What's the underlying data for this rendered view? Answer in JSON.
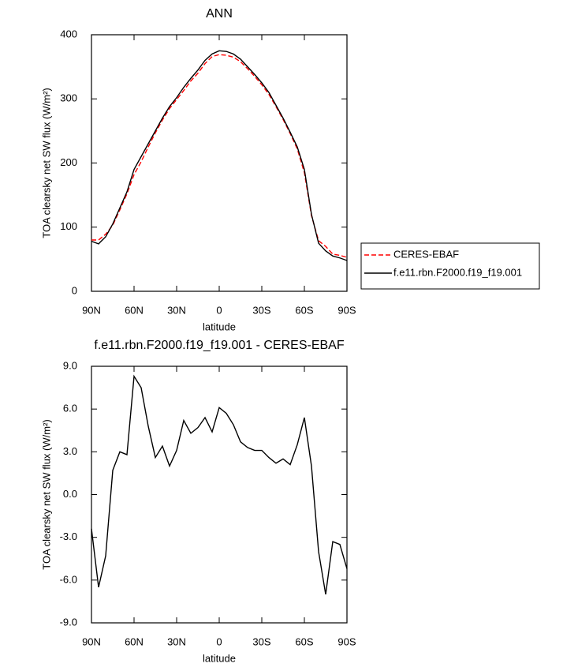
{
  "chart_data": [
    {
      "type": "line",
      "title": "ANN",
      "xlabel": "latitude",
      "ylabel": "TOA clearsky net SW flux (W/m²)",
      "x": [
        90,
        85,
        80,
        75,
        70,
        65,
        60,
        55,
        50,
        45,
        40,
        35,
        30,
        25,
        20,
        15,
        10,
        5,
        0,
        -5,
        -10,
        -15,
        -20,
        -25,
        -30,
        -35,
        -40,
        -45,
        -50,
        -55,
        -60,
        -65,
        -70,
        -75,
        -80,
        -85,
        -90
      ],
      "series": [
        {
          "name": "CERES-EBAF",
          "color": "#ff0000",
          "style": "dashed",
          "values": [
            80,
            80,
            89,
            103,
            127,
            152,
            182,
            202,
            225,
            247,
            267,
            285,
            299,
            313,
            328,
            340,
            355,
            366,
            369,
            368,
            365,
            358,
            347,
            335,
            322,
            307,
            288,
            268,
            246,
            222,
            185,
            118,
            79,
            70,
            58,
            56,
            53
          ]
        },
        {
          "name": "f.e11.rbn.F2000.f19_f19.001",
          "color": "#000000",
          "style": "solid",
          "values": [
            78,
            74,
            85,
            105,
            130,
            155,
            190,
            210,
            230,
            250,
            270,
            288,
            302,
            318,
            332,
            345,
            360,
            370,
            375,
            374,
            370,
            362,
            350,
            338,
            325,
            310,
            290,
            270,
            248,
            225,
            190,
            120,
            75,
            63,
            55,
            52,
            48
          ]
        }
      ],
      "xlim": [
        90,
        -90
      ],
      "xticks": [
        {
          "value": 90,
          "label": "90N"
        },
        {
          "value": 60,
          "label": "60N"
        },
        {
          "value": 30,
          "label": "30N"
        },
        0,
        {
          "value": -30,
          "label": "30S"
        },
        {
          "value": -60,
          "label": "60S"
        },
        {
          "value": -90,
          "label": "90S"
        }
      ],
      "ylim": [
        0,
        400
      ],
      "yticks": [
        0,
        100,
        200,
        300,
        400
      ],
      "legend": "right"
    },
    {
      "type": "line",
      "title": "f.e11.rbn.F2000.f19_f19.001 - CERES-EBAF",
      "xlabel": "latitude",
      "ylabel": "TOA clearsky net SW flux (W/m²)",
      "x": [
        90,
        85,
        80,
        75,
        70,
        65,
        60,
        55,
        50,
        45,
        40,
        35,
        30,
        25,
        20,
        15,
        10,
        5,
        0,
        -5,
        -10,
        -15,
        -20,
        -25,
        -30,
        -35,
        -40,
        -45,
        -50,
        -55,
        -60,
        -65,
        -70,
        -75,
        -80,
        -85,
        -90
      ],
      "series": [
        {
          "color": "#000000",
          "style": "solid",
          "values": [
            -2.4,
            -6.5,
            -4.3,
            1.7,
            3.0,
            2.8,
            8.3,
            7.5,
            4.8,
            2.6,
            3.4,
            2.0,
            3.1,
            5.2,
            4.3,
            4.7,
            5.4,
            4.4,
            6.1,
            5.7,
            4.9,
            3.7,
            3.3,
            3.1,
            3.1,
            2.6,
            2.2,
            2.5,
            2.1,
            3.5,
            5.4,
            2.0,
            -4.0,
            -7.0,
            -3.3,
            -3.5,
            -5.2
          ]
        }
      ],
      "xlim": [
        90,
        -90
      ],
      "xticks": [
        {
          "value": 90,
          "label": "90N"
        },
        {
          "value": 60,
          "label": "60N"
        },
        {
          "value": 30,
          "label": "30N"
        },
        0,
        {
          "value": -30,
          "label": "30S"
        },
        {
          "value": -60,
          "label": "60S"
        },
        {
          "value": -90,
          "label": "90S"
        }
      ],
      "ylim": [
        -9,
        9
      ],
      "yticks": [
        {
          "value": -9,
          "label": "-9.0"
        },
        {
          "value": -6,
          "label": "-6.0"
        },
        {
          "value": -3,
          "label": "-3.0"
        },
        {
          "value": 0,
          "label": "0.0"
        },
        {
          "value": 3,
          "label": "3.0"
        },
        {
          "value": 6,
          "label": "6.0"
        },
        {
          "value": 9,
          "label": "9.0"
        }
      ]
    }
  ]
}
